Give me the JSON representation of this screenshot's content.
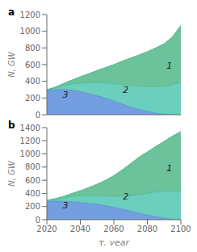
{
  "chart_data": [
    {
      "type": "area",
      "title": "a",
      "stacked": true,
      "grid": false,
      "tick_labels": "y",
      "ylabel": "N, GW",
      "x": [
        2020,
        2025,
        2030,
        2035,
        2040,
        2045,
        2050,
        2055,
        2060,
        2065,
        2070,
        2075,
        2080,
        2085,
        2090,
        2095,
        2100
      ],
      "series": [
        {
          "color": "#5b8dd9",
          "values": [
            295,
            300,
            305,
            295,
            280,
            255,
            230,
            200,
            165,
            130,
            95,
            65,
            40,
            20,
            8,
            2,
            0
          ]
        },
        {
          "color": "#52c5b0",
          "values": [
            5,
            15,
            40,
            70,
            100,
            125,
            155,
            180,
            205,
            230,
            255,
            275,
            295,
            315,
            330,
            355,
            390
          ]
        },
        {
          "color": "#52b788",
          "values": [
            0,
            15,
            30,
            50,
            75,
            110,
            145,
            185,
            230,
            280,
            330,
            375,
            420,
            465,
            510,
            575,
            680
          ]
        }
      ],
      "xlim": [
        2020,
        2100
      ],
      "xticks": [
        2020,
        2040,
        2060,
        2080,
        2100
      ],
      "ylim": [
        0,
        1200
      ],
      "yticks": [
        0,
        200,
        400,
        600,
        800,
        1000,
        1200
      ],
      "annotations": [
        {
          "text": "1",
          "x": 2089,
          "y": 590
        },
        {
          "text": "2",
          "x": 2063,
          "y": 295
        },
        {
          "text": "3",
          "x": 2027,
          "y": 245
        }
      ]
    },
    {
      "type": "area",
      "title": "b",
      "stacked": true,
      "grid": false,
      "xlabel": "τ, year",
      "ylabel": "N, GW",
      "x": [
        2020,
        2025,
        2030,
        2035,
        2040,
        2045,
        2050,
        2055,
        2060,
        2065,
        2070,
        2075,
        2080,
        2085,
        2090,
        2095,
        2100
      ],
      "series": [
        {
          "color": "#5b8dd9",
          "values": [
            285,
            285,
            280,
            275,
            265,
            252,
            235,
            215,
            190,
            162,
            133,
            105,
            75,
            48,
            25,
            10,
            0
          ]
        },
        {
          "color": "#52c5b0",
          "values": [
            10,
            20,
            45,
            75,
            100,
            115,
            130,
            145,
            165,
            195,
            230,
            275,
            325,
            375,
            405,
            420,
            420
          ]
        },
        {
          "color": "#52b788",
          "values": [
            0,
            15,
            30,
            50,
            75,
            120,
            175,
            240,
            315,
            400,
            490,
            570,
            630,
            690,
            760,
            840,
            920
          ]
        }
      ],
      "xlim": [
        2020,
        2100
      ],
      "xticks": [
        2020,
        2040,
        2060,
        2080,
        2100
      ],
      "ylim": [
        0,
        1400
      ],
      "yticks": [
        0,
        200,
        400,
        600,
        800,
        1000,
        1200,
        1400
      ],
      "annotations": [
        {
          "text": "1",
          "x": 2089,
          "y": 790
        },
        {
          "text": "2",
          "x": 2063,
          "y": 350
        },
        {
          "text": "3",
          "x": 2027,
          "y": 220
        }
      ]
    }
  ]
}
